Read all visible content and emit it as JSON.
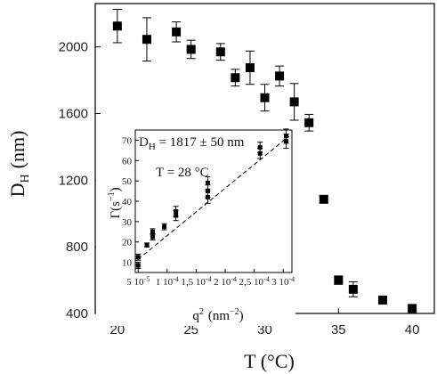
{
  "chart_data": [
    {
      "type": "scatter",
      "xlabel": "T (°C)",
      "ylabel_main": "D",
      "ylabel_sub": "H",
      "ylabel_unit": "(nm)",
      "xlim": [
        18.5,
        41.5
      ],
      "ylim": [
        400,
        2260
      ],
      "x_ticks": [
        20,
        25,
        30,
        35,
        40
      ],
      "y_ticks": [
        400,
        800,
        1200,
        1600,
        2000
      ],
      "grid": false,
      "marker": "square",
      "color": "#000000",
      "points": [
        {
          "x": 20,
          "y": 2125,
          "err": 100
        },
        {
          "x": 22,
          "y": 2045,
          "err": 130
        },
        {
          "x": 24,
          "y": 2090,
          "err": 60
        },
        {
          "x": 25,
          "y": 1985,
          "err": 55
        },
        {
          "x": 27,
          "y": 1970,
          "err": 50
        },
        {
          "x": 28,
          "y": 1815,
          "err": 50
        },
        {
          "x": 29,
          "y": 1875,
          "err": 100
        },
        {
          "x": 30,
          "y": 1695,
          "err": 80
        },
        {
          "x": 31,
          "y": 1825,
          "err": 60
        },
        {
          "x": 32,
          "y": 1670,
          "err": 110
        },
        {
          "x": 33,
          "y": 1545,
          "err": 50
        },
        {
          "x": 34,
          "y": 1085,
          "err": 20
        },
        {
          "x": 35,
          "y": 600,
          "err": 25
        },
        {
          "x": 36,
          "y": 545,
          "err": 45
        },
        {
          "x": 38,
          "y": 480,
          "err": 20
        },
        {
          "x": 40,
          "y": 430,
          "err": 15
        }
      ]
    },
    {
      "type": "scatter",
      "inset": true,
      "xlabel_main": "q",
      "xlabel_sup": "2",
      "xlabel_unit_pre": "(nm",
      "xlabel_unit_sup": "−2",
      "xlabel_unit_post": ")",
      "ylabel_main": "Γ",
      "ylabel_unit_pre": "(s",
      "ylabel_unit_sup": "−1",
      "ylabel_unit_post": ")",
      "xlim": [
        4.5e-05,
        0.000315
      ],
      "ylim": [
        5,
        75
      ],
      "x_ticks": [
        {
          "v": 5e-05,
          "m": "5",
          "e": "-5"
        },
        {
          "v": 0.0001,
          "m": "1",
          "e": "-4"
        },
        {
          "v": 0.00015,
          "m": "1,5",
          "e": "-4"
        },
        {
          "v": 0.0002,
          "m": "2",
          "e": "-4"
        },
        {
          "v": 0.00025,
          "m": "2,5",
          "e": "-4"
        },
        {
          "v": 0.0003,
          "m": "3",
          "e": "-4"
        }
      ],
      "x_tick_base": "10",
      "y_ticks": [
        10,
        20,
        30,
        40,
        50,
        60,
        70
      ],
      "annotations": {
        "dh_main": "D",
        "dh_sub": "H",
        "dh_rest": " = 1817 ± 50 nm",
        "temp": "T = 28 °C"
      },
      "fit_line": [
        {
          "x": 5e-05,
          "y": 11.5
        },
        {
          "x": 0.00031,
          "y": 72
        }
      ],
      "points": [
        {
          "x": 5e-05,
          "y": 8.5,
          "err": 1.5
        },
        {
          "x": 5e-05,
          "y": 12.5,
          "err": 1.5
        },
        {
          "x": 6.5e-05,
          "y": 18.5,
          "err": 1.0
        },
        {
          "x": 7.5e-05,
          "y": 22.5,
          "err": 1.5
        },
        {
          "x": 7.5e-05,
          "y": 25.0,
          "err": 1.5
        },
        {
          "x": 9.5e-05,
          "y": 27.5,
          "err": 1.5
        },
        {
          "x": 0.000115,
          "y": 33.0,
          "err": 2.5
        },
        {
          "x": 0.000115,
          "y": 35.0,
          "err": 2.5
        },
        {
          "x": 0.00017,
          "y": 42.0,
          "err": 3.0
        },
        {
          "x": 0.00017,
          "y": 45.0,
          "err": 3.0
        },
        {
          "x": 0.00017,
          "y": 49.0,
          "err": 3.0
        },
        {
          "x": 0.00026,
          "y": 63.5,
          "err": 2.5
        },
        {
          "x": 0.00026,
          "y": 66.5,
          "err": 2.5
        },
        {
          "x": 0.000305,
          "y": 69.5,
          "err": 3.5
        },
        {
          "x": 0.000305,
          "y": 72.0,
          "err": 3.5
        }
      ]
    }
  ]
}
